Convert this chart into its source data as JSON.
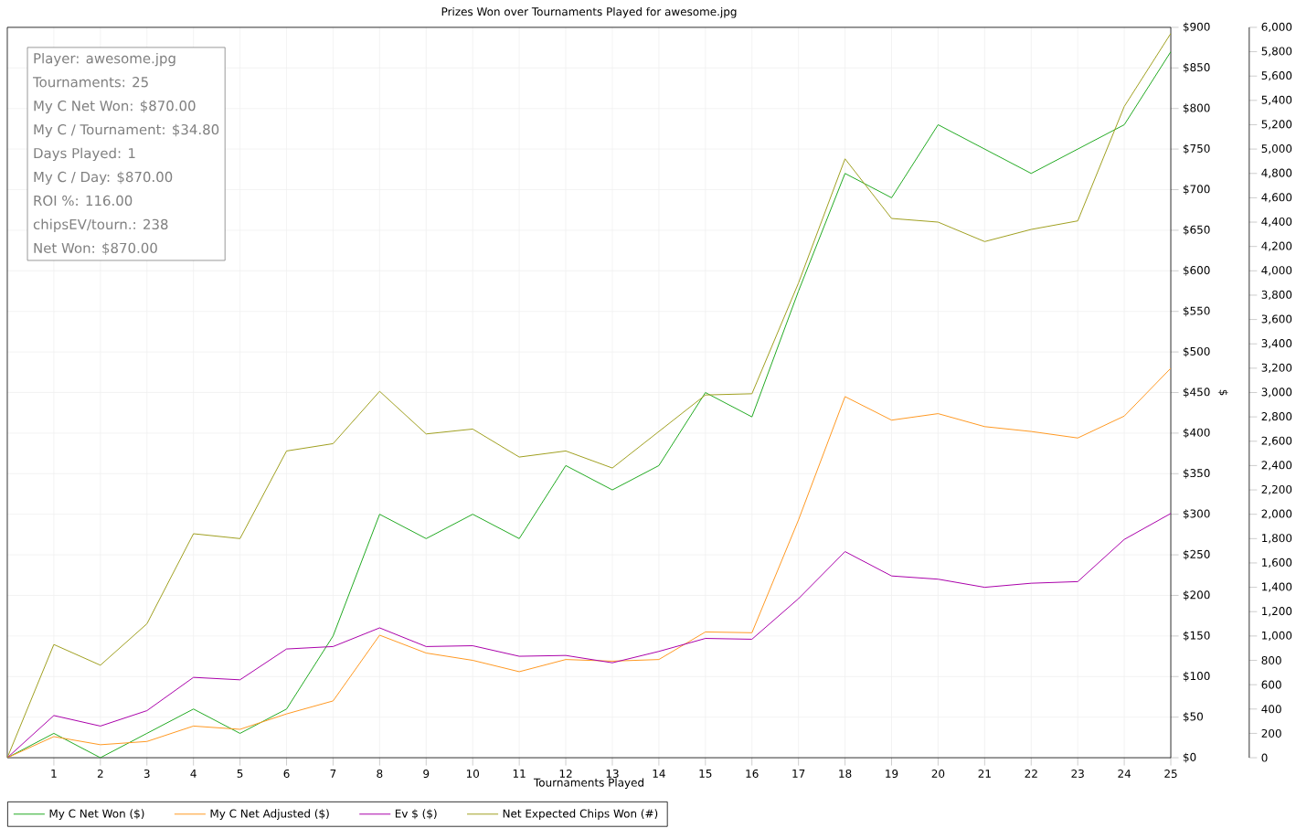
{
  "chart_data": {
    "type": "line",
    "title": "Prizes Won over Tournaments Played for awesome.jpg",
    "xlabel": "Tournaments Played",
    "ylabel": "$",
    "x": [
      0,
      1,
      2,
      3,
      4,
      5,
      6,
      7,
      8,
      9,
      10,
      11,
      12,
      13,
      14,
      15,
      16,
      17,
      18,
      19,
      20,
      21,
      22,
      23,
      24,
      25
    ],
    "series": [
      {
        "name": "My C Net Won ($)",
        "color": "#22aa22",
        "values": [
          0,
          30,
          0,
          30,
          60,
          30,
          60,
          150,
          300,
          270,
          300,
          270,
          360,
          330,
          360,
          450,
          420,
          575,
          720,
          690,
          780,
          750,
          720,
          750,
          780,
          870
        ]
      },
      {
        "name": "My C Net Adjusted ($)",
        "color": "#ff9922",
        "values": [
          0,
          26,
          16,
          20,
          39,
          35,
          54,
          70,
          151,
          129,
          120,
          106,
          121,
          119,
          121,
          155,
          154,
          293,
          445,
          416,
          424,
          408,
          402,
          394,
          421,
          480
        ]
      },
      {
        "name": "Ev $ ($)",
        "color": "#aa00aa",
        "values": [
          0,
          52,
          39,
          58,
          99,
          96,
          134,
          137,
          160,
          137,
          138,
          125,
          126,
          117,
          131,
          147,
          146,
          196,
          254,
          224,
          220,
          210,
          215,
          217,
          269,
          301
        ]
      },
      {
        "name": "Net Expected Chips Won (#)",
        "color": "#a0a020",
        "axis": "y2",
        "values": [
          0,
          930,
          760,
          1100,
          1840,
          1800,
          2520,
          2580,
          3010,
          2660,
          2700,
          2470,
          2520,
          2380,
          2680,
          2980,
          2990,
          3900,
          4920,
          4430,
          4400,
          4240,
          4340,
          4410,
          5350,
          5950
        ]
      }
    ],
    "xlim": [
      0,
      25
    ],
    "xticks": [
      1,
      2,
      3,
      4,
      5,
      6,
      7,
      8,
      9,
      10,
      11,
      12,
      13,
      14,
      15,
      16,
      17,
      18,
      19,
      20,
      21,
      22,
      23,
      24,
      25
    ],
    "ylim": [
      0,
      900
    ],
    "yticks": [
      {
        "value": 0,
        "label": "$0"
      },
      {
        "value": 50,
        "label": "$50"
      },
      {
        "value": 100,
        "label": "$100"
      },
      {
        "value": 150,
        "label": "$150"
      },
      {
        "value": 200,
        "label": "$200"
      },
      {
        "value": 250,
        "label": "$250"
      },
      {
        "value": 300,
        "label": "$300"
      },
      {
        "value": 350,
        "label": "$350"
      },
      {
        "value": 400,
        "label": "$400"
      },
      {
        "value": 450,
        "label": "$450"
      },
      {
        "value": 500,
        "label": "$500"
      },
      {
        "value": 550,
        "label": "$550"
      },
      {
        "value": 600,
        "label": "$600"
      },
      {
        "value": 650,
        "label": "$650"
      },
      {
        "value": 700,
        "label": "$700"
      },
      {
        "value": 750,
        "label": "$750"
      },
      {
        "value": 800,
        "label": "$800"
      },
      {
        "value": 850,
        "label": "$850"
      },
      {
        "value": 900,
        "label": "$900"
      }
    ],
    "y2lim": [
      0,
      6000
    ],
    "y2ticks": [
      0,
      200,
      400,
      600,
      800,
      {
        "value": 1000,
        "label": "1,000"
      },
      {
        "value": 1200,
        "label": "1,200"
      },
      {
        "value": 1400,
        "label": "1,400"
      },
      {
        "value": 1600,
        "label": "1,600"
      },
      {
        "value": 1800,
        "label": "1,800"
      },
      {
        "value": 2000,
        "label": "2,000"
      },
      {
        "value": 2200,
        "label": "2,200"
      },
      {
        "value": 2400,
        "label": "2,400"
      },
      {
        "value": 2600,
        "label": "2,600"
      },
      {
        "value": 2800,
        "label": "2,800"
      },
      {
        "value": 3000,
        "label": "3,000"
      },
      {
        "value": 3200,
        "label": "3,200"
      },
      {
        "value": 3400,
        "label": "3,400"
      },
      {
        "value": 3600,
        "label": "3,600"
      },
      {
        "value": 3800,
        "label": "3,800"
      },
      {
        "value": 4000,
        "label": "4,000"
      },
      {
        "value": 4200,
        "label": "4,200"
      },
      {
        "value": 4400,
        "label": "4,400"
      },
      {
        "value": 4600,
        "label": "4,600"
      },
      {
        "value": 4800,
        "label": "4,800"
      },
      {
        "value": 5000,
        "label": "5,000"
      },
      {
        "value": 5200,
        "label": "5,200"
      },
      {
        "value": 5400,
        "label": "5,400"
      },
      {
        "value": 5600,
        "label": "5,600"
      },
      {
        "value": 5800,
        "label": "5,800"
      },
      {
        "value": 6000,
        "label": "6,000"
      }
    ],
    "annotations": [
      "Player: awesome.jpg",
      "Tournaments: 25",
      "My C Net Won: $870.00",
      "My C / Tournament: $34.80",
      "Days Played: 1",
      "My C / Day: $870.00",
      "ROI %: 116.00",
      "chipsEV/tourn.: 238",
      "Net Won: $870.00"
    ],
    "grid": true,
    "legend": "bottom",
    "marker": "none",
    "line_style": "solid"
  }
}
